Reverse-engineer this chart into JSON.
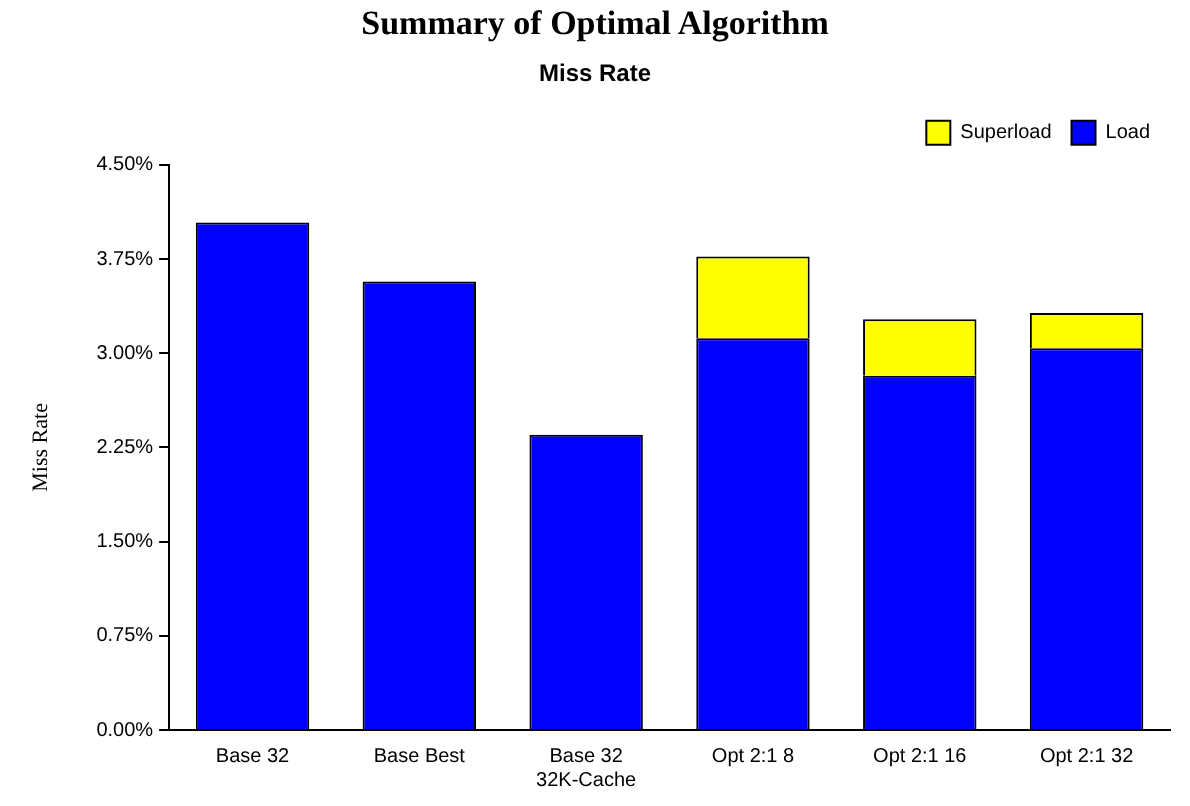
{
  "chart_data": {
    "type": "bar",
    "title": "Summary of Optimal Algorithm",
    "subtitle": "Miss Rate",
    "ylabel": "Miss Rate",
    "categories": [
      "Base 32",
      "Base Best",
      "Base 32\n32K-Cache",
      "Opt 2:1 8",
      "Opt 2:1 16",
      "Opt 2:1 32"
    ],
    "stacked": true,
    "series": [
      {
        "name": "Load",
        "color": "#0000ff",
        "values": [
          4.04,
          3.57,
          2.35,
          3.12,
          2.82,
          3.04
        ]
      },
      {
        "name": "Superload",
        "color": "#ffff00",
        "values": [
          0,
          0,
          0,
          0.65,
          0.45,
          0.28
        ]
      }
    ],
    "ylim": [
      0,
      4.5
    ],
    "yticks": [
      {
        "value": 0,
        "label": "0.00%"
      },
      {
        "value": 0.75,
        "label": "0.75%"
      },
      {
        "value": 1.5,
        "label": "1.50%"
      },
      {
        "value": 2.25,
        "label": "2.25%"
      },
      {
        "value": 3,
        "label": "3.00%"
      },
      {
        "value": 3.75,
        "label": "3.75%"
      },
      {
        "value": 4.5,
        "label": "4.50%"
      }
    ],
    "grid": false,
    "legend": "top right"
  }
}
